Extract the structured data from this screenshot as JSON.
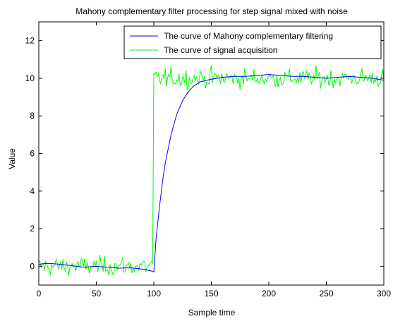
{
  "chart_data": {
    "type": "line",
    "title": "Mahony complementary filter processing for step signal mixed with noise",
    "xlabel": "Sample time",
    "ylabel": "Value",
    "xlim": [
      0,
      300
    ],
    "ylim": [
      -1,
      13
    ],
    "xticks": [
      0,
      50,
      100,
      150,
      200,
      250,
      300
    ],
    "yticks": [
      0,
      2,
      4,
      6,
      8,
      10,
      12
    ],
    "grid": false,
    "legend_position": "top-right",
    "step_index": 100,
    "step_low_level": 0,
    "step_high_level": 10,
    "series": [
      {
        "name": "The curve of Mahony complementary filtering",
        "color": "#0000ff",
        "x": [
          0,
          5,
          10,
          20,
          30,
          40,
          50,
          60,
          70,
          80,
          90,
          98,
          100,
          102,
          105,
          108,
          110,
          115,
          120,
          125,
          130,
          135,
          140,
          150,
          160,
          170,
          180,
          190,
          200,
          210,
          220,
          230,
          240,
          250,
          260,
          270,
          280,
          290,
          300
        ],
        "y": [
          0.1,
          0.15,
          0.15,
          0.1,
          0.02,
          -0.05,
          0.0,
          -0.05,
          -0.1,
          -0.08,
          -0.15,
          -0.25,
          -0.3,
          1.5,
          3.2,
          4.7,
          5.5,
          7.0,
          8.1,
          8.8,
          9.3,
          9.6,
          9.8,
          9.95,
          10.05,
          10.1,
          10.1,
          10.15,
          10.2,
          10.15,
          10.1,
          10.1,
          10.05,
          10.0,
          10.05,
          10.1,
          10.05,
          10.0,
          9.9
        ]
      },
      {
        "name": "The curve of signal acquisition",
        "color": "#00ff00",
        "description": "step signal mixed with noise: about 0 for samples 0-99, about 10 for samples 100-300",
        "noise_std": 0.25
      }
    ]
  }
}
